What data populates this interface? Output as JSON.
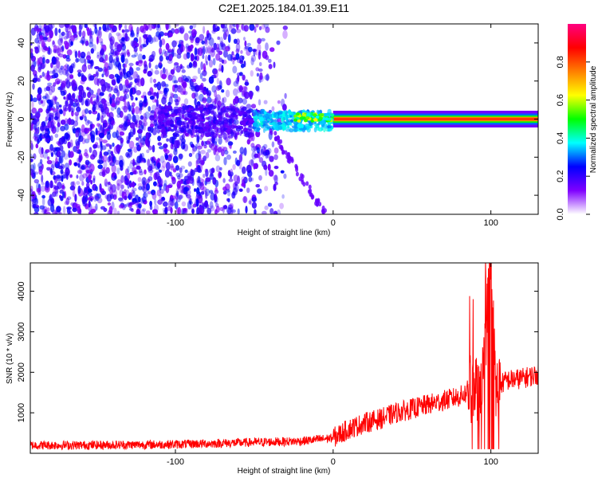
{
  "title": "C2E1.2025.184.01.39.E11",
  "chart_data": [
    {
      "type": "heatmap",
      "title": "C2E1.2025.184.01.39.E11",
      "xlabel": "Height of straight line (km)",
      "ylabel": "Frequency (Hz)",
      "xlim": [
        -192,
        130
      ],
      "ylim": [
        -50,
        50
      ],
      "xticks": [
        -100,
        0,
        100
      ],
      "xtick_labels": [
        "-100",
        "0",
        "100"
      ],
      "yticks": [
        -40,
        -20,
        0,
        20,
        40
      ],
      "ytick_labels": [
        "-40",
        "-20",
        "0",
        "20",
        "40"
      ],
      "colorbar": {
        "label": "Normalized spectral amplitude",
        "range": [
          0,
          1
        ],
        "ticks": [
          0,
          0.2,
          0.4,
          0.6,
          0.8
        ],
        "tick_labels": [
          "0.0",
          "0.2",
          "0.4",
          "0.6",
          "0.8"
        ],
        "colormap": "rainbow",
        "colors": [
          "#ffffff",
          "#7f00ff",
          "#0000ff",
          "#00ffff",
          "#00ff00",
          "#ffff00",
          "#ff7f00",
          "#ff0000",
          "#ff0080"
        ]
      },
      "regions": [
        {
          "x": [
            -192,
            -50
          ],
          "freq": [
            -50,
            50
          ],
          "amplitude": 0.12
        },
        {
          "x": [
            -50,
            0
          ],
          "freq": [
            -10,
            5
          ],
          "amplitude": 0.3
        },
        {
          "x": [
            0,
            130
          ],
          "freq": [
            -1,
            1
          ],
          "amplitude": 0.85
        }
      ]
    },
    {
      "type": "line",
      "xlabel": "Height of straight line (km)",
      "ylabel": "SNR (10 * v/v)",
      "xlim": [
        -192,
        130
      ],
      "ylim": [
        0,
        4700
      ],
      "xticks": [
        -100,
        0,
        100
      ],
      "xtick_labels": [
        "-100",
        "0",
        "100"
      ],
      "yticks": [
        1000,
        2000,
        3000,
        4000
      ],
      "ytick_labels": [
        "1000",
        "2000",
        "3000",
        "4000"
      ],
      "series": [
        {
          "color": "#ff0000",
          "x": [
            -192,
            -160,
            -130,
            -100,
            -80,
            -60,
            -40,
            -20,
            -10,
            0,
            10,
            20,
            30,
            40,
            50,
            60,
            70,
            80,
            85,
            90,
            95,
            100,
            103,
            106,
            110,
            120,
            130
          ],
          "values": [
            200,
            200,
            210,
            220,
            240,
            260,
            280,
            300,
            340,
            380,
            600,
            750,
            850,
            1000,
            1100,
            1200,
            1300,
            1400,
            1500,
            1600,
            1900,
            4700,
            1500,
            1700,
            1800,
            1850,
            1950
          ]
        }
      ]
    }
  ]
}
